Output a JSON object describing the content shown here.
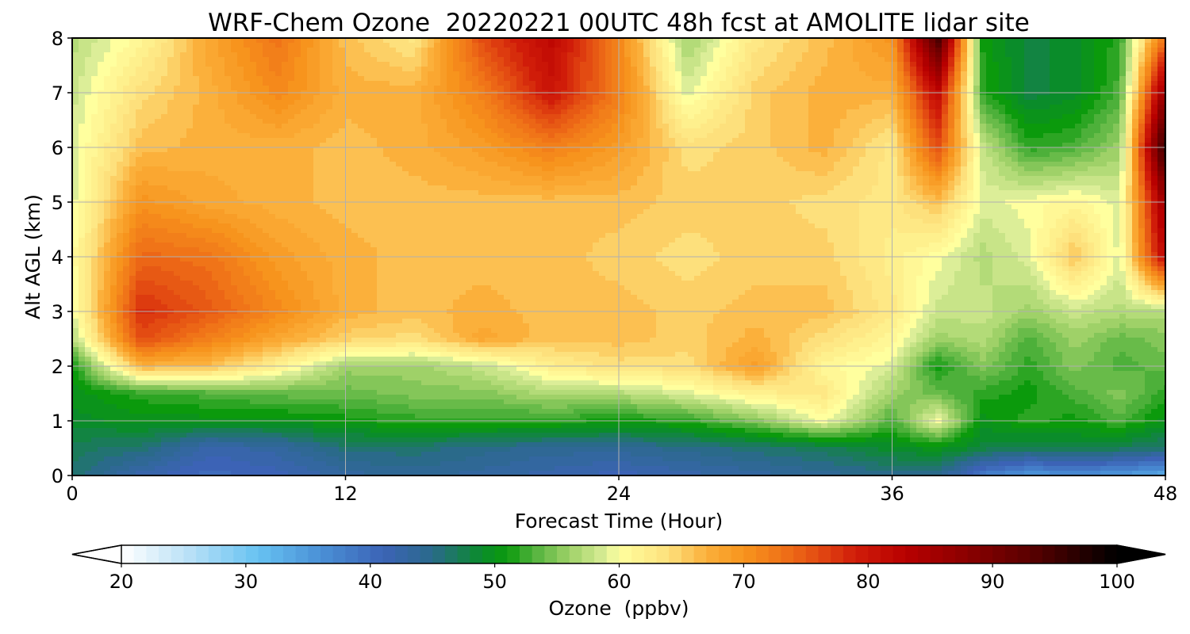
{
  "chart_data": {
    "type": "heatmap",
    "title": "WRF-Chem Ozone  20220221 00UTC 48h fcst at AMOLITE lidar site",
    "xlabel": "Forecast Time (Hour)",
    "ylabel": "Alt AGL (km)",
    "xlim": [
      0,
      48
    ],
    "ylim": [
      0,
      8
    ],
    "x_ticks": [
      0,
      12,
      24,
      36,
      48
    ],
    "y_ticks": [
      0,
      1,
      2,
      3,
      4,
      5,
      6,
      7,
      8
    ],
    "grid": true,
    "x": [
      0,
      3,
      6,
      9,
      12,
      15,
      18,
      21,
      24,
      27,
      30,
      33,
      36,
      38,
      40,
      42,
      44,
      46,
      48
    ],
    "y": [
      0,
      0.5,
      1,
      1.5,
      2,
      2.5,
      3,
      4,
      5,
      6,
      7,
      8
    ],
    "z": [
      [
        46,
        42,
        40,
        41,
        43,
        44,
        43,
        42,
        41,
        42,
        43,
        44,
        45,
        45,
        38,
        35,
        36,
        35,
        33
      ],
      [
        47,
        46,
        42,
        43,
        46,
        46,
        45,
        44,
        44,
        45,
        46,
        47,
        49,
        50,
        48,
        47,
        48,
        47,
        46
      ],
      [
        49,
        50,
        50,
        50,
        51,
        52,
        52,
        52,
        51,
        52,
        55,
        60,
        53,
        60,
        50,
        52,
        51,
        53,
        50
      ],
      [
        50,
        52,
        53,
        54,
        54,
        55,
        55,
        57,
        57,
        59,
        62,
        63,
        56,
        54,
        52,
        51,
        53,
        55,
        52
      ],
      [
        51,
        67,
        66,
        62,
        56,
        56,
        58,
        62,
        64,
        64,
        69,
        61,
        59,
        51,
        55,
        52,
        55,
        53,
        54
      ],
      [
        57,
        76,
        72,
        68,
        65,
        64,
        68,
        66,
        66,
        65,
        67,
        64,
        61,
        56,
        57,
        53,
        56,
        54,
        55
      ],
      [
        59,
        78,
        75,
        71,
        67,
        66,
        67,
        66,
        66,
        65,
        66,
        66,
        63,
        58,
        58,
        56,
        58,
        57,
        57
      ],
      [
        60,
        74,
        73,
        69,
        67,
        66,
        66,
        66,
        65,
        64,
        65,
        65,
        62,
        60,
        57,
        59,
        66,
        59,
        83
      ],
      [
        59,
        70,
        68,
        67,
        66,
        66,
        66,
        66,
        66,
        65,
        65,
        64,
        63,
        66,
        59,
        60,
        61,
        59,
        87
      ],
      [
        59,
        66,
        67,
        67,
        66,
        67,
        69,
        72,
        69,
        64,
        65,
        67,
        63,
        76,
        58,
        52,
        53,
        56,
        98
      ],
      [
        58,
        64,
        67,
        71,
        67,
        67,
        72,
        80,
        72,
        59,
        65,
        67,
        67,
        82,
        52,
        48,
        49,
        53,
        88
      ],
      [
        57,
        61,
        68,
        73,
        66,
        63,
        76,
        82,
        71,
        56,
        63,
        66,
        70,
        95,
        51,
        48,
        49,
        52,
        74
      ]
    ],
    "colorbar": {
      "label": "Ozone  (ppbv)",
      "range": [
        20,
        100
      ],
      "tick_values": [
        20,
        30,
        40,
        50,
        60,
        70,
        80,
        90,
        100
      ],
      "extend": "both",
      "stops": [
        {
          "v": 20,
          "c": "#ffffff"
        },
        {
          "v": 25,
          "c": "#bfe3f7"
        },
        {
          "v": 31,
          "c": "#67c2f2"
        },
        {
          "v": 36,
          "c": "#4a90d6"
        },
        {
          "v": 41,
          "c": "#3c63b6"
        },
        {
          "v": 45,
          "c": "#2a6a8a"
        },
        {
          "v": 49,
          "c": "#0a8c2a"
        },
        {
          "v": 51,
          "c": "#0b9a0c"
        },
        {
          "v": 53,
          "c": "#4db03a"
        },
        {
          "v": 56,
          "c": "#9fd168"
        },
        {
          "v": 59,
          "c": "#dcee98"
        },
        {
          "v": 60,
          "c": "#ffff9e"
        },
        {
          "v": 64,
          "c": "#fde07c"
        },
        {
          "v": 67,
          "c": "#fbb03b"
        },
        {
          "v": 70,
          "c": "#f7941d"
        },
        {
          "v": 73,
          "c": "#f07418"
        },
        {
          "v": 76,
          "c": "#e34b12"
        },
        {
          "v": 79,
          "c": "#d01c09"
        },
        {
          "v": 83,
          "c": "#b80000"
        },
        {
          "v": 88,
          "c": "#8a0000"
        },
        {
          "v": 93,
          "c": "#5a0000"
        },
        {
          "v": 97,
          "c": "#260000"
        },
        {
          "v": 100,
          "c": "#000000"
        }
      ]
    }
  }
}
